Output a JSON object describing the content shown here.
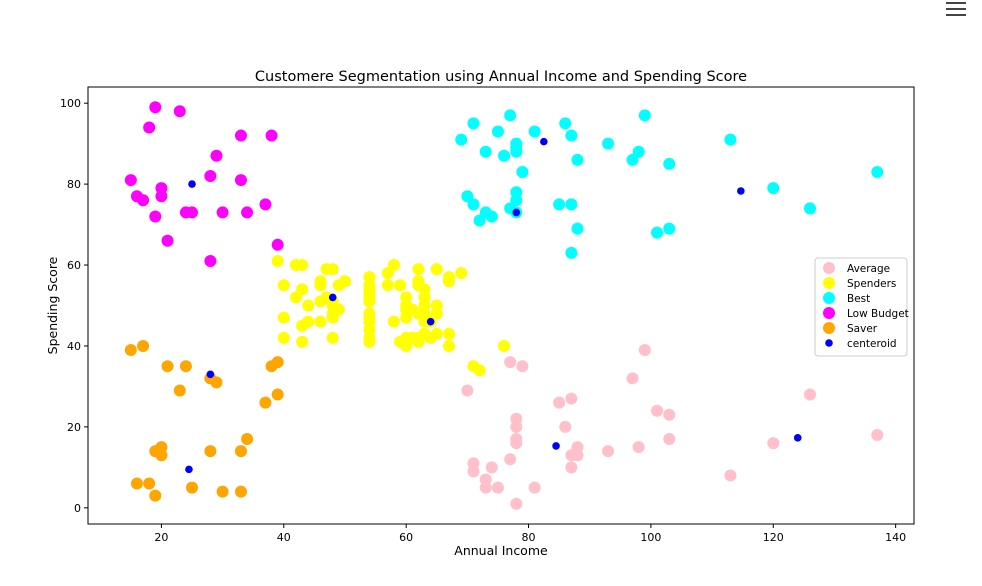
{
  "menu": {
    "icon": "hamburger-menu-icon"
  },
  "chart_data": {
    "type": "scatter",
    "title": "Customere Segmentation using Annual Income and Spending Score",
    "xlabel": "Annual Income",
    "ylabel": "Spending Score",
    "xlim": [
      8,
      143
    ],
    "ylim": [
      -4,
      104
    ],
    "xticks": [
      20,
      40,
      60,
      80,
      100,
      120,
      140
    ],
    "yticks": [
      0,
      20,
      40,
      60,
      80,
      100
    ],
    "grid": false,
    "legend_position": "center-right",
    "series": [
      {
        "name": "Average",
        "color": "#ffc0cb",
        "marker_size": "large",
        "points": [
          [
            70,
            29
          ],
          [
            71,
            11
          ],
          [
            71,
            9
          ],
          [
            73,
            5
          ],
          [
            73,
            7
          ],
          [
            74,
            10
          ],
          [
            75,
            5
          ],
          [
            77,
            12
          ],
          [
            77,
            36
          ],
          [
            78,
            22
          ],
          [
            78,
            17
          ],
          [
            78,
            20
          ],
          [
            78,
            16
          ],
          [
            78,
            1
          ],
          [
            79,
            35
          ],
          [
            81,
            5
          ],
          [
            85,
            26
          ],
          [
            86,
            20
          ],
          [
            87,
            27
          ],
          [
            87,
            13
          ],
          [
            87,
            10
          ],
          [
            88,
            13
          ],
          [
            88,
            15
          ],
          [
            93,
            14
          ],
          [
            97,
            32
          ],
          [
            98,
            15
          ],
          [
            99,
            39
          ],
          [
            101,
            24
          ],
          [
            103,
            17
          ],
          [
            103,
            23
          ],
          [
            113,
            8
          ],
          [
            120,
            16
          ],
          [
            126,
            28
          ],
          [
            137,
            18
          ]
        ]
      },
      {
        "name": "Spenders",
        "color": "#ffff00",
        "marker_size": "large",
        "points": [
          [
            39,
            61
          ],
          [
            40,
            55
          ],
          [
            40,
            47
          ],
          [
            40,
            42
          ],
          [
            42,
            52
          ],
          [
            42,
            60
          ],
          [
            43,
            54
          ],
          [
            43,
            60
          ],
          [
            43,
            45
          ],
          [
            43,
            41
          ],
          [
            44,
            50
          ],
          [
            44,
            46
          ],
          [
            46,
            51
          ],
          [
            46,
            46
          ],
          [
            46,
            56
          ],
          [
            46,
            55
          ],
          [
            47,
            52
          ],
          [
            47,
            59
          ],
          [
            48,
            51
          ],
          [
            48,
            59
          ],
          [
            48,
            50
          ],
          [
            48,
            48
          ],
          [
            48,
            47
          ],
          [
            48,
            42
          ],
          [
            49,
            49
          ],
          [
            49,
            55
          ],
          [
            50,
            56
          ],
          [
            54,
            47
          ],
          [
            54,
            54
          ],
          [
            54,
            53
          ],
          [
            54,
            48
          ],
          [
            54,
            52
          ],
          [
            54,
            42
          ],
          [
            54,
            51
          ],
          [
            54,
            55
          ],
          [
            54,
            41
          ],
          [
            54,
            44
          ],
          [
            54,
            57
          ],
          [
            54,
            46
          ],
          [
            57,
            58
          ],
          [
            57,
            55
          ],
          [
            58,
            60
          ],
          [
            58,
            46
          ],
          [
            59,
            55
          ],
          [
            59,
            41
          ],
          [
            60,
            49
          ],
          [
            60,
            40
          ],
          [
            60,
            42
          ],
          [
            60,
            52
          ],
          [
            60,
            47
          ],
          [
            60,
            50
          ],
          [
            61,
            42
          ],
          [
            61,
            49
          ],
          [
            62,
            41
          ],
          [
            62,
            48
          ],
          [
            62,
            59
          ],
          [
            62,
            55
          ],
          [
            62,
            56
          ],
          [
            62,
            42
          ],
          [
            63,
            50
          ],
          [
            63,
            46
          ],
          [
            63,
            43
          ],
          [
            63,
            48
          ],
          [
            63,
            52
          ],
          [
            63,
            54
          ],
          [
            64,
            42
          ],
          [
            64,
            46
          ],
          [
            65,
            48
          ],
          [
            65,
            50
          ],
          [
            65,
            43
          ],
          [
            65,
            59
          ],
          [
            67,
            43
          ],
          [
            67,
            57
          ],
          [
            67,
            56
          ],
          [
            67,
            40
          ],
          [
            69,
            58
          ],
          [
            71,
            35
          ],
          [
            72,
            34
          ],
          [
            76,
            40
          ]
        ]
      },
      {
        "name": "Best",
        "color": "#00ffff",
        "marker_size": "large",
        "points": [
          [
            69,
            91
          ],
          [
            70,
            77
          ],
          [
            71,
            95
          ],
          [
            71,
            75
          ],
          [
            72,
            71
          ],
          [
            73,
            88
          ],
          [
            73,
            73
          ],
          [
            74,
            72
          ],
          [
            75,
            93
          ],
          [
            76,
            87
          ],
          [
            77,
            97
          ],
          [
            77,
            74
          ],
          [
            78,
            90
          ],
          [
            78,
            88
          ],
          [
            78,
            76
          ],
          [
            78,
            89
          ],
          [
            78,
            78
          ],
          [
            78,
            73
          ],
          [
            79,
            83
          ],
          [
            81,
            93
          ],
          [
            85,
            75
          ],
          [
            86,
            95
          ],
          [
            87,
            63
          ],
          [
            87,
            75
          ],
          [
            87,
            92
          ],
          [
            88,
            86
          ],
          [
            88,
            69
          ],
          [
            93,
            90
          ],
          [
            97,
            86
          ],
          [
            98,
            88
          ],
          [
            99,
            97
          ],
          [
            101,
            68
          ],
          [
            103,
            85
          ],
          [
            103,
            69
          ],
          [
            113,
            91
          ],
          [
            120,
            79
          ],
          [
            126,
            74
          ],
          [
            137,
            83
          ]
        ]
      },
      {
        "name": "Low Budget",
        "color": "#ff00ff",
        "marker_size": "large",
        "points": [
          [
            15,
            81
          ],
          [
            16,
            77
          ],
          [
            17,
            76
          ],
          [
            18,
            94
          ],
          [
            19,
            72
          ],
          [
            19,
            99
          ],
          [
            20,
            77
          ],
          [
            20,
            79
          ],
          [
            21,
            66
          ],
          [
            23,
            98
          ],
          [
            24,
            73
          ],
          [
            25,
            73
          ],
          [
            28,
            82
          ],
          [
            28,
            61
          ],
          [
            29,
            87
          ],
          [
            30,
            73
          ],
          [
            33,
            92
          ],
          [
            33,
            81
          ],
          [
            34,
            73
          ],
          [
            37,
            75
          ],
          [
            38,
            92
          ],
          [
            39,
            65
          ]
        ]
      },
      {
        "name": "Saver",
        "color": "#ffa500",
        "marker_size": "large",
        "points": [
          [
            15,
            39
          ],
          [
            16,
            6
          ],
          [
            17,
            40
          ],
          [
            18,
            6
          ],
          [
            19,
            3
          ],
          [
            19,
            14
          ],
          [
            20,
            15
          ],
          [
            20,
            13
          ],
          [
            21,
            35
          ],
          [
            23,
            29
          ],
          [
            24,
            35
          ],
          [
            25,
            5
          ],
          [
            28,
            14
          ],
          [
            28,
            32
          ],
          [
            29,
            31
          ],
          [
            30,
            4
          ],
          [
            33,
            4
          ],
          [
            33,
            14
          ],
          [
            34,
            17
          ],
          [
            37,
            26
          ],
          [
            38,
            35
          ],
          [
            39,
            36
          ],
          [
            39,
            28
          ]
        ]
      },
      {
        "name": "centeroid",
        "color": "#0000ff",
        "marker_size": "small",
        "points": [
          [
            25,
            80
          ],
          [
            28,
            33
          ],
          [
            24.5,
            9.5
          ],
          [
            48,
            52
          ],
          [
            64,
            46
          ],
          [
            82.5,
            90.5
          ],
          [
            78,
            73
          ],
          [
            114.7,
            78.3
          ],
          [
            84.5,
            15.3
          ],
          [
            124,
            17.3
          ]
        ]
      }
    ]
  }
}
